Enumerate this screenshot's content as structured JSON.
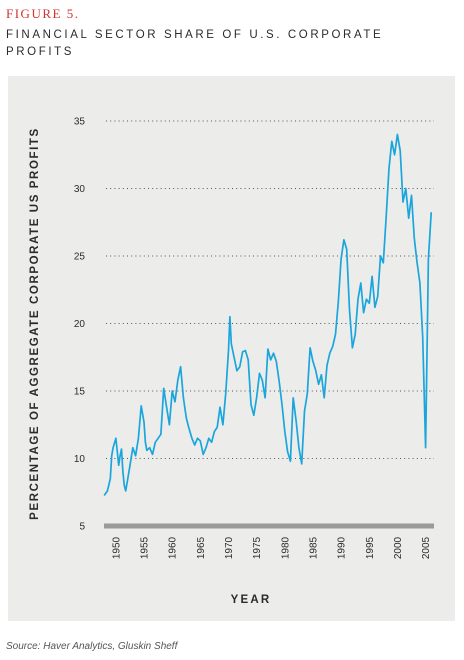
{
  "figure": {
    "label": "FIGURE 5.",
    "title": "FINANCIAL SECTOR SHARE OF U.S. CORPORATE PROFITS",
    "source": "Source: Haver Analytics, Gluskin Sheff"
  },
  "colors": {
    "label": "#d3332c",
    "line": "#1aa6dc",
    "panel": "#ececeb",
    "text": "#2b2b2b",
    "axis_bar": "#9a9a9a"
  },
  "chart_data": {
    "type": "line",
    "title": "",
    "xlabel": "YEAR",
    "ylabel": "PERCENTAGE OF AGGREGATE CORPORATE US PROFITS",
    "xlim": [
      1948.6,
      2006.5
    ],
    "ylim": [
      5,
      35
    ],
    "x_ticks": [
      "1950",
      "1955",
      "1960",
      "1965",
      "1970",
      "1975",
      "1980",
      "1985",
      "1990",
      "1995",
      "2000",
      "2005"
    ],
    "y_ticks": [
      "5",
      "10",
      "15",
      "20",
      "25",
      "30",
      "35"
    ],
    "grid": "dotted horizontal",
    "series": [
      {
        "name": "",
        "x": [
          1948.0,
          1948.5,
          1949.0,
          1949.25,
          1949.5,
          1950.0,
          1950.25,
          1950.5,
          1950.75,
          1951.0,
          1951.25,
          1951.5,
          1951.75,
          1952.0,
          1952.5,
          1953.0,
          1953.5,
          1954.0,
          1954.5,
          1955.0,
          1955.25,
          1955.5,
          1956.0,
          1956.5,
          1957.0,
          1957.5,
          1958.0,
          1958.5,
          1959.0,
          1959.5,
          1960.0,
          1960.5,
          1961.0,
          1961.5,
          1962.0,
          1962.5,
          1963.0,
          1963.5,
          1964.0,
          1964.5,
          1965.0,
          1965.5,
          1966.0,
          1966.5,
          1967.0,
          1967.5,
          1968.0,
          1968.5,
          1969.0,
          1969.5,
          1970.0,
          1970.25,
          1970.5,
          1971.0,
          1971.5,
          1972.0,
          1972.5,
          1973.0,
          1973.5,
          1974.0,
          1974.5,
          1975.0,
          1975.5,
          1976.0,
          1976.5,
          1977.0,
          1977.5,
          1978.0,
          1978.5,
          1979.0,
          1979.5,
          1980.0,
          1980.5,
          1981.0,
          1981.5,
          1982.0,
          1982.5,
          1983.0,
          1983.5,
          1984.0,
          1984.5,
          1985.0,
          1985.5,
          1986.0,
          1986.5,
          1987.0,
          1987.5,
          1988.0,
          1988.5,
          1989.0,
          1989.5,
          1990.0,
          1990.5,
          1991.0,
          1991.5,
          1992.0,
          1992.5,
          1993.0,
          1993.5,
          1994.0,
          1994.5,
          1995.0,
          1995.5,
          1996.0,
          1996.5,
          1997.0,
          1997.5,
          1998.0,
          1998.5,
          1999.0,
          1999.5,
          2000.0,
          2000.5,
          2001.0,
          2001.5,
          2002.0,
          2002.5,
          2003.0,
          2003.5,
          2004.0,
          2004.5,
          2005.0,
          2005.5,
          2006.0
        ],
        "values": [
          7.3,
          7.6,
          8.5,
          10.2,
          10.8,
          11.5,
          10.5,
          9.5,
          10.2,
          10.7,
          9.0,
          8.0,
          7.6,
          8.2,
          9.5,
          10.8,
          10.2,
          11.5,
          13.9,
          12.7,
          11.2,
          10.6,
          10.8,
          10.3,
          11.2,
          11.5,
          11.8,
          15.2,
          13.8,
          12.5,
          15.0,
          14.2,
          15.8,
          16.8,
          14.5,
          13.0,
          12.2,
          11.5,
          11.0,
          11.5,
          11.3,
          10.3,
          10.8,
          11.5,
          11.2,
          12.0,
          12.3,
          13.8,
          12.5,
          14.8,
          18.0,
          20.5,
          18.5,
          17.5,
          16.5,
          16.8,
          17.9,
          18.0,
          17.3,
          14.0,
          13.2,
          14.5,
          16.3,
          15.8,
          14.5,
          18.1,
          17.3,
          17.8,
          17.2,
          15.7,
          14.0,
          12.0,
          10.5,
          9.8,
          14.5,
          12.8,
          10.8,
          9.6,
          13.5,
          14.8,
          18.2,
          17.2,
          16.5,
          15.5,
          16.2,
          14.5,
          16.9,
          17.8,
          18.3,
          19.2,
          21.6,
          24.8,
          26.2,
          25.5,
          21.0,
          18.2,
          19.2,
          21.8,
          23.0,
          20.8,
          21.8,
          21.5,
          23.5,
          21.2,
          22.0,
          25.0,
          24.5,
          27.8,
          31.5,
          33.5,
          32.5,
          34.0,
          32.8,
          29.0,
          30.0,
          27.8,
          29.5,
          26.3,
          24.5,
          23.0,
          19.0,
          10.8,
          24.8,
          28.2
        ]
      }
    ]
  }
}
